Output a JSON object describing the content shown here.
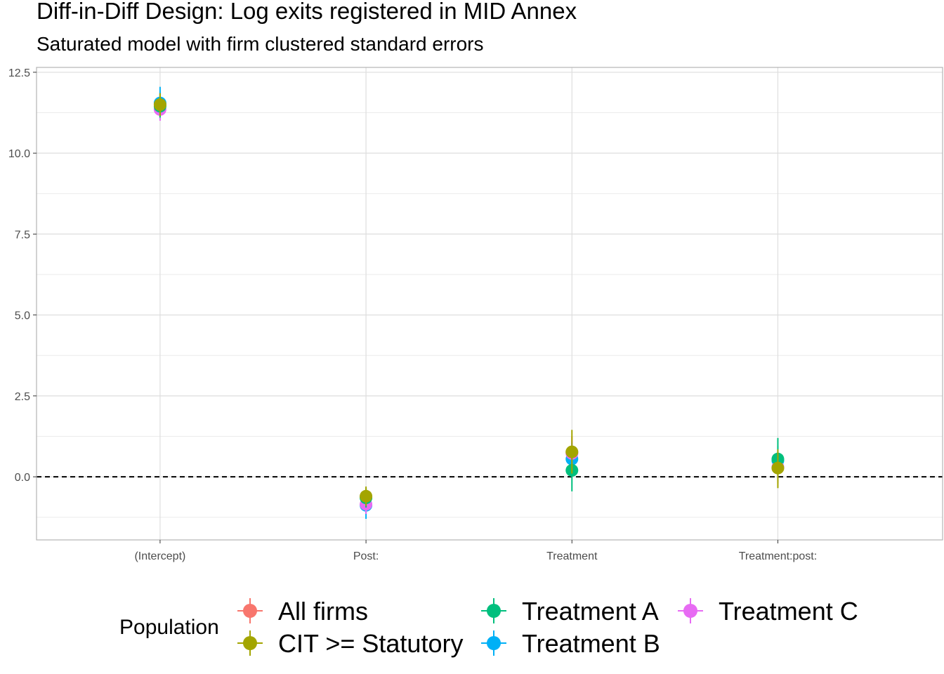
{
  "chart_data": {
    "type": "scatter",
    "title": "Diff-in-Diff Design: Log exits registered in MID Annex",
    "subtitle": "Saturated model with firm clustered standard errors",
    "xlabel": "",
    "ylabel": "",
    "categories": [
      "(Intercept)",
      "Post:",
      "Treatment",
      "Treatment:post:"
    ],
    "ylim": [
      -1.95,
      12.65
    ],
    "yticks": [
      0.0,
      2.5,
      5.0,
      7.5,
      10.0,
      12.5
    ],
    "ytick_labels": [
      "0.0",
      "2.5",
      "5.0",
      "7.5",
      "10.0",
      "12.5"
    ],
    "grid": true,
    "reference_line": 0,
    "legend": {
      "title": "Population",
      "position": "bottom"
    },
    "series": [
      {
        "name": "All firms",
        "color": "#F8766D",
        "estimates": [
          11.5,
          -0.62,
          0.75,
          0.28
        ],
        "ci_low": [
          11.1,
          -0.9,
          0.25,
          -0.2
        ],
        "ci_high": [
          11.9,
          -0.35,
          1.25,
          0.75
        ]
      },
      {
        "name": "Treatment B",
        "color": "#00B0F6",
        "estimates": [
          11.55,
          -0.88,
          0.55,
          0.5
        ],
        "ci_low": [
          11.05,
          -1.3,
          0.05,
          0.05
        ],
        "ci_high": [
          12.05,
          -0.45,
          1.05,
          0.95
        ]
      },
      {
        "name": "Treatment C",
        "color": "#E76BF3",
        "estimates": [
          11.35,
          -0.85,
          0.72,
          0.3
        ],
        "ci_low": [
          11.0,
          -1.15,
          0.35,
          -0.05
        ],
        "ci_high": [
          11.7,
          -0.55,
          1.1,
          0.65
        ]
      },
      {
        "name": "Treatment A",
        "color": "#00BF7D",
        "estimates": [
          11.45,
          -0.65,
          0.2,
          0.55
        ],
        "ci_low": [
          11.1,
          -0.95,
          -0.45,
          -0.1
        ],
        "ci_high": [
          11.85,
          -0.35,
          0.85,
          1.2
        ]
      },
      {
        "name": "CIT >= Statutory",
        "color": "#A3A500",
        "estimates": [
          11.5,
          -0.6,
          0.77,
          0.27
        ],
        "ci_low": [
          11.15,
          -0.9,
          0.1,
          -0.35
        ],
        "ci_high": [
          11.85,
          -0.3,
          1.45,
          0.85
        ]
      }
    ]
  }
}
